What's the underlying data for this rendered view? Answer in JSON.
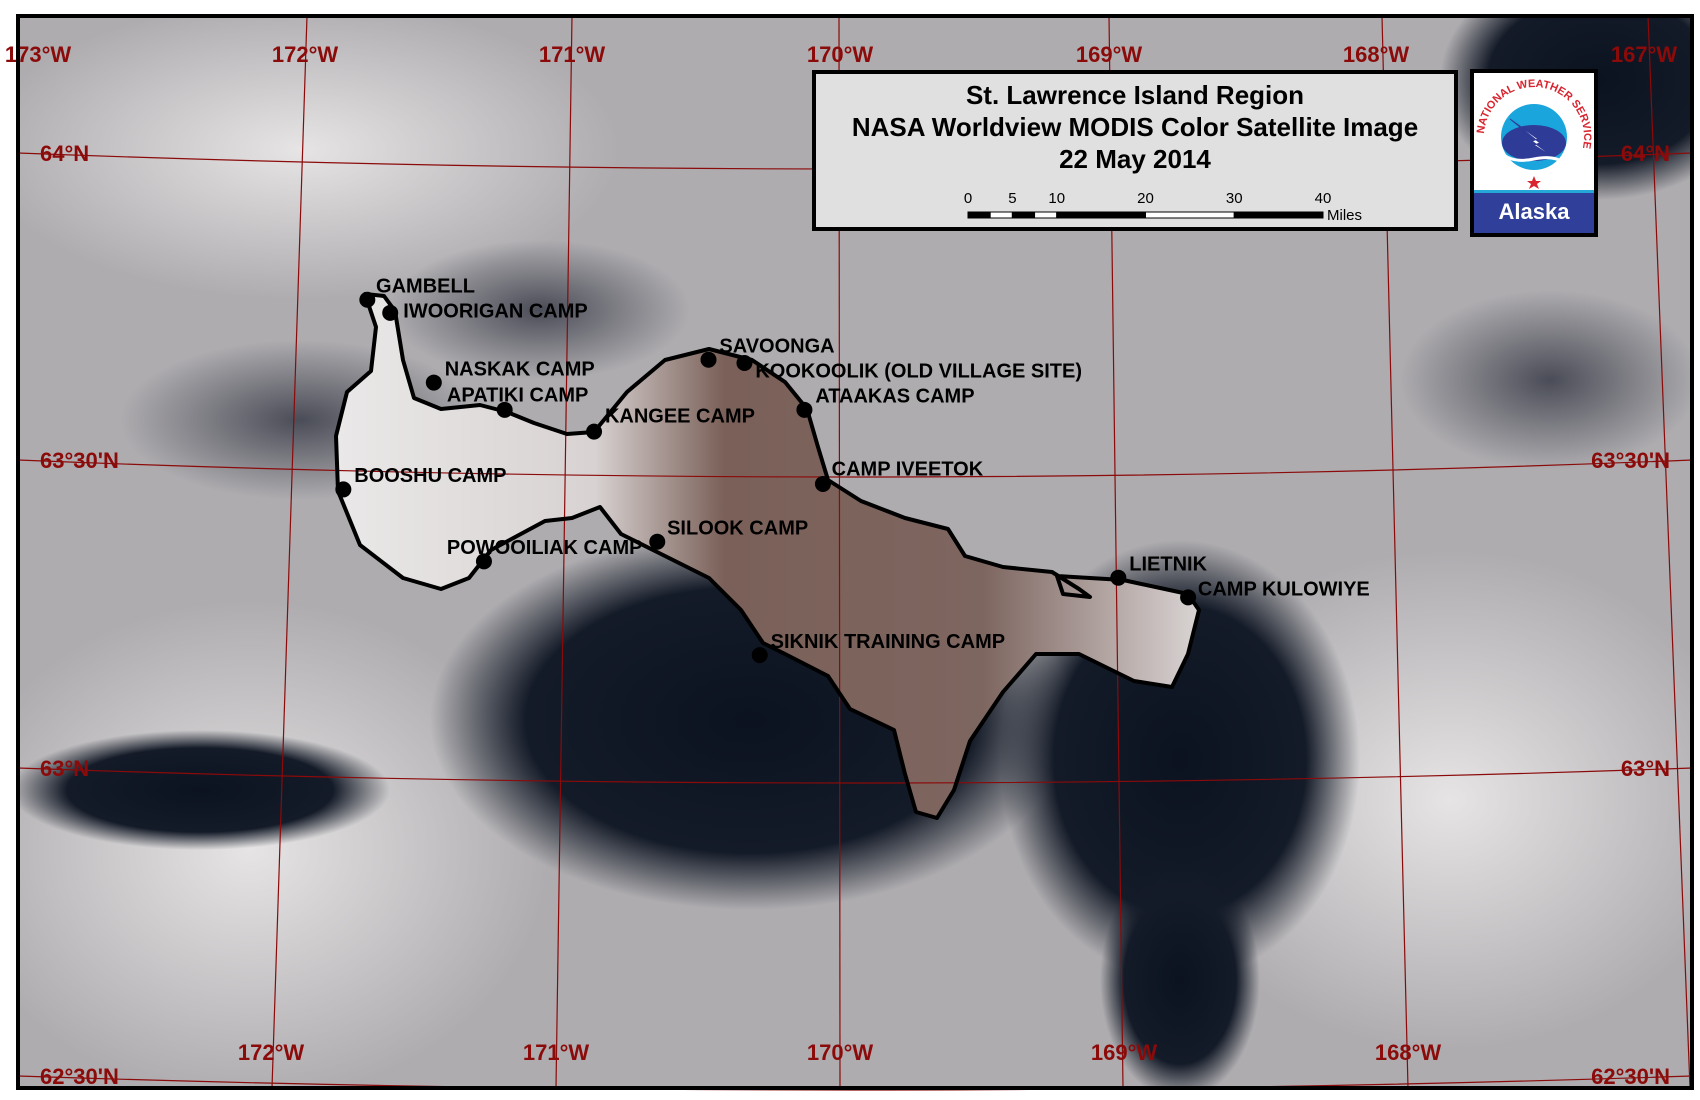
{
  "title": {
    "line1": "St. Lawrence Island Region",
    "line2": "NASA Worldview MODIS Color Satellite Image",
    "line3": "22 May 2014"
  },
  "scale_bar": {
    "ticks": [
      "0",
      "5",
      "10",
      "20",
      "30",
      "40"
    ],
    "unit": "Miles"
  },
  "logo": {
    "ring_text": "NATIONAL WEATHER SERVICE",
    "region": "Alaska"
  },
  "graticule": {
    "top_longitudes": [
      "173°W",
      "172°W",
      "171°W",
      "170°W",
      "169°W",
      "168°W",
      "167°W"
    ],
    "bottom_longitudes": [
      "172°W",
      "171°W",
      "170°W",
      "169°W",
      "168°W"
    ],
    "left_latitudes": [
      "64°N",
      "63°30'N",
      "63°N",
      "62°30'N"
    ],
    "right_latitudes": [
      "64°N",
      "63°30'N",
      "63°N",
      "62°30'N"
    ],
    "color": "#8b0a0a"
  },
  "places": [
    "GAMBELL",
    "IWOORIGAN CAMP",
    "NASKAK CAMP",
    "APATIKI CAMP",
    "KANGEE CAMP",
    "SAVOONGA",
    "KOOKOOLIK (OLD VILLAGE SITE)",
    "ATAAKAS CAMP",
    "CAMP IVEETOK",
    "BOOSHU CAMP",
    "SILOOK CAMP",
    "POWOOILIAK CAMP",
    "SIKNIK TRAINING CAMP",
    "LIETNIK",
    "CAMP KULOWIYE"
  ]
}
